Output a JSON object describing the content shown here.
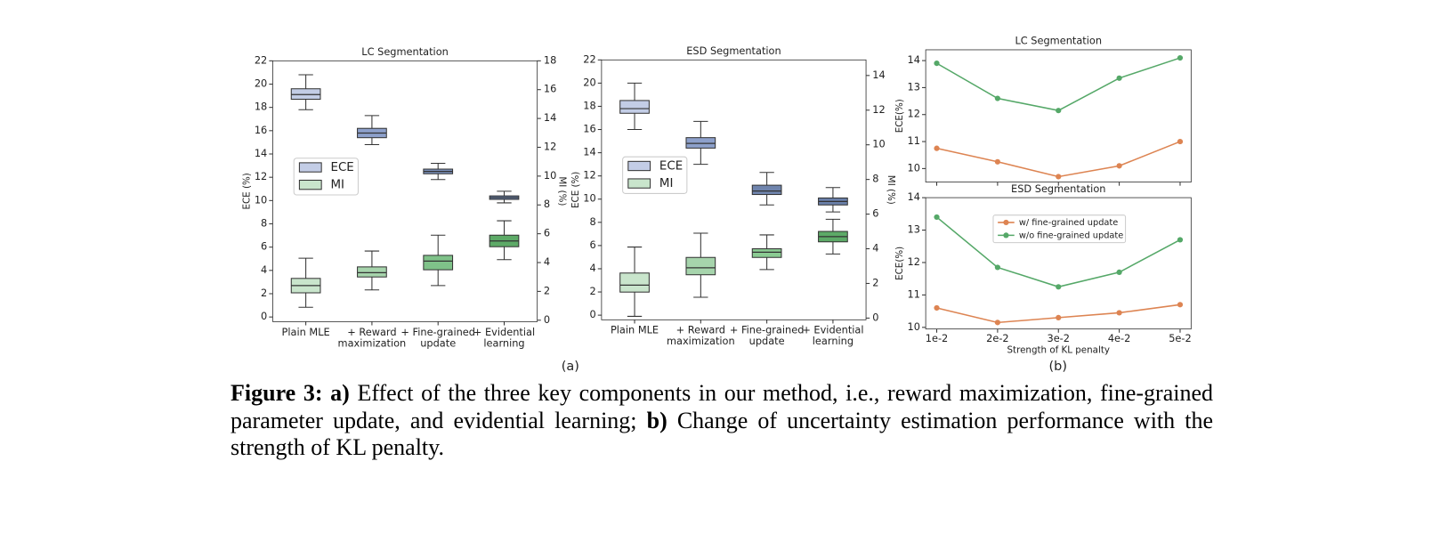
{
  "chart_data": [
    {
      "type": "box",
      "title": "LC Segmentation",
      "categories": [
        "Plain MLE",
        "+ Reward\nmaximization",
        "+ Fine-grained\nupdate",
        "+ Evidential\nlearning"
      ],
      "ylabel": "ECE (%)",
      "y2label": "MI (%)",
      "ylim": [
        -0.4,
        22
      ],
      "yticks": [
        0,
        2,
        4,
        6,
        8,
        10,
        12,
        14,
        16,
        18,
        20,
        22
      ],
      "y2lim": [
        -0.1,
        18
      ],
      "y2ticks": [
        0,
        2,
        4,
        6,
        8,
        10,
        12,
        14,
        16,
        18
      ],
      "legend": "center left",
      "grid": false,
      "series": [
        {
          "name": "ECE",
          "color": "#c3cde6",
          "colors": [
            "#c3cde6",
            "#8da0cb",
            "#7a8fba",
            "#6a80aa"
          ],
          "axis": "y",
          "values": [
            {
              "whislo": 17.8,
              "q1": 18.7,
              "med": 19.1,
              "q3": 19.6,
              "whishi": 20.8
            },
            {
              "whislo": 14.8,
              "q1": 15.4,
              "med": 15.8,
              "q3": 16.2,
              "whishi": 17.3
            },
            {
              "whislo": 11.8,
              "q1": 12.3,
              "med": 12.5,
              "q3": 12.7,
              "whishi": 13.2
            },
            {
              "whislo": 9.8,
              "q1": 10.1,
              "med": 10.25,
              "q3": 10.4,
              "whishi": 10.8
            }
          ]
        },
        {
          "name": "MI",
          "color": "#c9e5cc",
          "colors": [
            "#c9e5cc",
            "#a6d4ac",
            "#7fc289",
            "#5daa67"
          ],
          "axis": "y2",
          "values": [
            {
              "whislo": 0.9,
              "q1": 1.9,
              "med": 2.4,
              "q3": 2.9,
              "whishi": 4.3
            },
            {
              "whislo": 2.1,
              "q1": 3.0,
              "med": 3.3,
              "q3": 3.7,
              "whishi": 4.8
            },
            {
              "whislo": 2.4,
              "q1": 3.5,
              "med": 4.1,
              "q3": 4.5,
              "whishi": 5.9
            },
            {
              "whislo": 4.2,
              "q1": 5.1,
              "med": 5.5,
              "q3": 5.9,
              "whishi": 6.9
            }
          ]
        }
      ]
    },
    {
      "type": "box",
      "title": "ESD Segmentation",
      "categories": [
        "Plain MLE",
        "+ Reward\nmaximization",
        "+ Fine-grained\nupdate",
        "+ Evidential\nlearning"
      ],
      "ylabel": "ECE (%)",
      "y2label": "MI (%)",
      "ylim": [
        -0.4,
        22
      ],
      "yticks": [
        0,
        2,
        4,
        6,
        8,
        10,
        12,
        14,
        16,
        18,
        20,
        22
      ],
      "y2lim": [
        -0.1,
        14.9
      ],
      "y2ticks": [
        0,
        2,
        4,
        6,
        8,
        10,
        12,
        14
      ],
      "legend": "center left",
      "grid": false,
      "series": [
        {
          "name": "ECE",
          "color": "#c3cde6",
          "colors": [
            "#c3cde6",
            "#8da0cb",
            "#6f84ad",
            "#6a80aa"
          ],
          "axis": "y",
          "values": [
            {
              "whislo": 16.0,
              "q1": 17.4,
              "med": 17.8,
              "q3": 18.5,
              "whishi": 20.0
            },
            {
              "whislo": 13.0,
              "q1": 14.4,
              "med": 14.8,
              "q3": 15.3,
              "whishi": 16.7
            },
            {
              "whislo": 9.5,
              "q1": 10.4,
              "med": 10.7,
              "q3": 11.2,
              "whishi": 12.3
            },
            {
              "whislo": 8.9,
              "q1": 9.5,
              "med": 9.8,
              "q3": 10.1,
              "whishi": 11.0
            }
          ]
        },
        {
          "name": "MI",
          "color": "#c9e5cc",
          "colors": [
            "#c9e5cc",
            "#a6d4ac",
            "#8acb92",
            "#5daa67"
          ],
          "axis": "y2",
          "values": [
            {
              "whislo": 0.1,
              "q1": 1.5,
              "med": 1.9,
              "q3": 2.6,
              "whishi": 4.1
            },
            {
              "whislo": 1.2,
              "q1": 2.5,
              "med": 2.9,
              "q3": 3.5,
              "whishi": 4.9
            },
            {
              "whislo": 2.8,
              "q1": 3.5,
              "med": 3.8,
              "q3": 4.0,
              "whishi": 4.8
            },
            {
              "whislo": 3.7,
              "q1": 4.4,
              "med": 4.7,
              "q3": 5.0,
              "whishi": 5.7
            }
          ]
        }
      ]
    },
    {
      "type": "line",
      "title": "LC Segmentation",
      "categories": [
        null,
        null,
        null,
        null,
        null
      ],
      "ylabel": "ECE(%)",
      "ylim": [
        9.5,
        14.4
      ],
      "yticks": [
        10,
        11,
        12,
        13,
        14
      ],
      "grid": false,
      "series": [
        {
          "color": "#dd8452",
          "values": [
            10.75,
            10.25,
            9.7,
            10.1,
            11.0
          ]
        },
        {
          "color": "#55a868",
          "values": [
            13.9,
            12.6,
            12.15,
            13.35,
            14.1
          ]
        }
      ]
    },
    {
      "type": "line",
      "title": "ESD Segmentation",
      "categories": [
        "1e-2",
        "2e-2",
        "3e-2",
        "4e-2",
        "5e-2"
      ],
      "xlabel": "Strength of KL penalty",
      "ylabel": "ECE(%)",
      "ylim": [
        9.95,
        14
      ],
      "yticks": [
        10,
        11,
        12,
        13,
        14
      ],
      "legend": "upper center",
      "grid": false,
      "series": [
        {
          "name": "w/ fine-grained update",
          "color": "#dd8452",
          "values": [
            10.6,
            10.15,
            10.3,
            10.45,
            10.7
          ]
        },
        {
          "name": "w/o fine-grained update",
          "color": "#55a868",
          "values": [
            13.4,
            11.85,
            11.25,
            11.7,
            12.7
          ]
        }
      ]
    }
  ],
  "panel_labels": [
    "(a)",
    "(b)"
  ],
  "caption": {
    "label": "Figure 3:",
    "a_label": "a)",
    "a_text": "Effect of the three key components in our method, i.e., reward maximization, fine-grained parameter update, and evidential learning;",
    "b_label": "b)",
    "b_text": "Change of uncertainty estimation performance with the strength of KL penalty."
  }
}
